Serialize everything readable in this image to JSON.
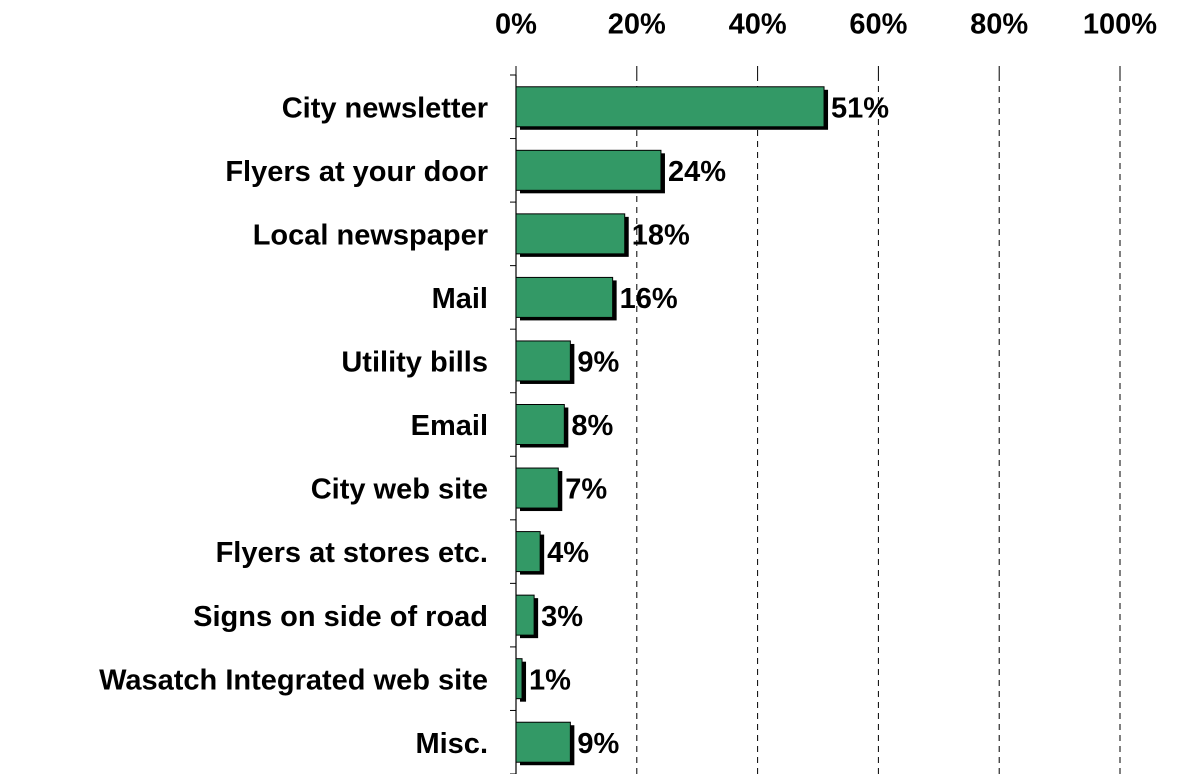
{
  "chart_data": {
    "type": "hbar",
    "categories": [
      "City newsletter",
      "Flyers at your door",
      "Local newspaper",
      "Mail",
      "Utility bills",
      "Email",
      "City web site",
      "Flyers at stores etc.",
      "Signs on side of road",
      "Wasatch Integrated web site",
      "Misc."
    ],
    "values": [
      51,
      24,
      18,
      16,
      9,
      8,
      7,
      4,
      3,
      1,
      9
    ],
    "value_labels": [
      "51%",
      "24%",
      "18%",
      "16%",
      "9%",
      "8%",
      "7%",
      "4%",
      "3%",
      "1%",
      "9%"
    ],
    "color": "#339966",
    "xlim": [
      0,
      100
    ],
    "xticks": [
      {
        "value": 0,
        "label": "0%"
      },
      {
        "value": 20,
        "label": "20%"
      },
      {
        "value": 40,
        "label": "40%"
      },
      {
        "value": 60,
        "label": "60%"
      },
      {
        "value": 80,
        "label": "80%"
      },
      {
        "value": 100,
        "label": "100%"
      }
    ],
    "grid": true
  }
}
